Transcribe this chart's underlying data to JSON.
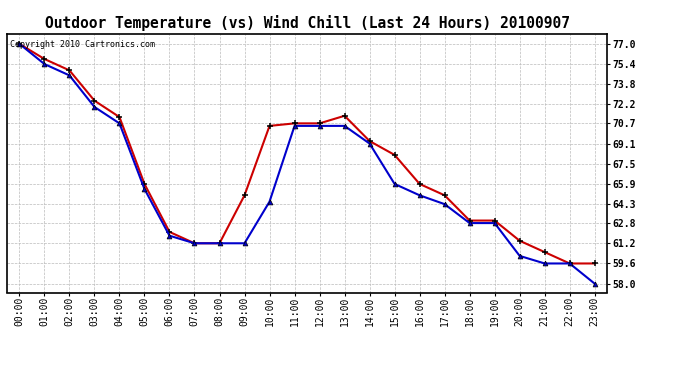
{
  "title": "Outdoor Temperature (vs) Wind Chill (Last 24 Hours) 20100907",
  "copyright_text": "Copyright 2010 Cartronics.com",
  "x_labels": [
    "00:00",
    "01:00",
    "02:00",
    "03:00",
    "04:00",
    "05:00",
    "06:00",
    "07:00",
    "08:00",
    "09:00",
    "10:00",
    "11:00",
    "12:00",
    "13:00",
    "14:00",
    "15:00",
    "16:00",
    "17:00",
    "18:00",
    "19:00",
    "20:00",
    "21:00",
    "22:00",
    "23:00"
  ],
  "temp_red": [
    77.0,
    75.8,
    74.9,
    72.5,
    71.2,
    65.9,
    62.1,
    61.2,
    61.2,
    65.0,
    70.5,
    70.7,
    70.7,
    71.3,
    69.3,
    68.2,
    65.9,
    65.0,
    63.0,
    63.0,
    61.4,
    60.5,
    59.6,
    59.6
  ],
  "temp_blue": [
    77.0,
    75.4,
    74.5,
    72.0,
    70.7,
    65.5,
    61.8,
    61.2,
    61.2,
    61.2,
    64.5,
    70.5,
    70.5,
    70.5,
    69.1,
    65.9,
    65.0,
    64.3,
    62.8,
    62.8,
    60.2,
    59.6,
    59.6,
    58.0
  ],
  "y_ticks": [
    58.0,
    59.6,
    61.2,
    62.8,
    64.3,
    65.9,
    67.5,
    69.1,
    70.7,
    72.2,
    73.8,
    75.4,
    77.0
  ],
  "y_min": 57.3,
  "y_max": 77.8,
  "red_color": "#cc0000",
  "blue_color": "#0000cc",
  "bg_color": "#ffffff",
  "grid_color": "#bbbbbb",
  "title_fontsize": 10.5,
  "tick_fontsize": 7,
  "copyright_fontsize": 6
}
